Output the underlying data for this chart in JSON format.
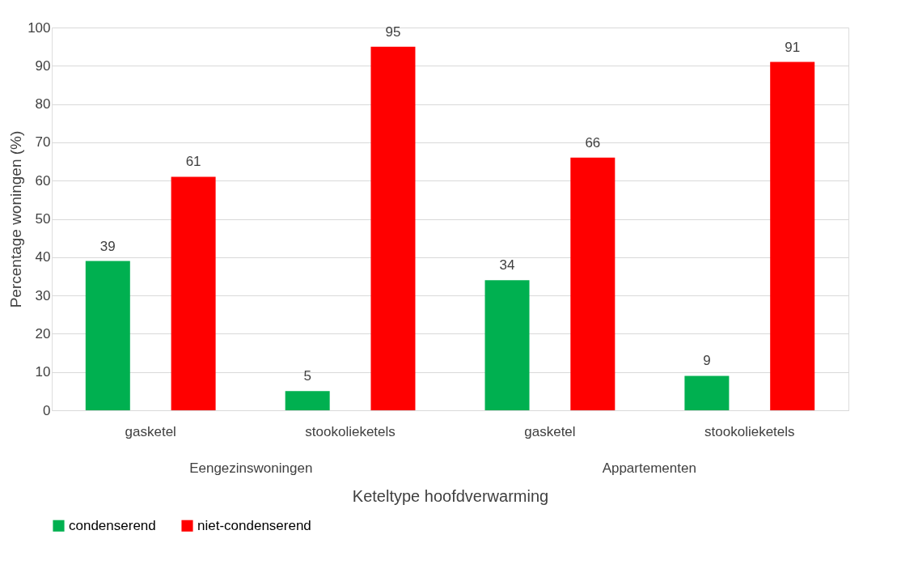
{
  "chart_data": {
    "type": "bar",
    "xlabel": "Keteltype hoofdverwarming",
    "ylabel": "Percentage woningen (%)",
    "categories": [
      "gasketel",
      "stookolieketels",
      "gasketel",
      "stookolieketels"
    ],
    "annotations": [
      "Eengezinswoningen",
      "Appartementen"
    ],
    "series": [
      {
        "name": "condenserend",
        "color": "#00b050",
        "values": [
          39,
          5,
          34,
          9
        ]
      },
      {
        "name": "niet-condenserend",
        "color": "#ff0000",
        "values": [
          61,
          95,
          66,
          91
        ]
      }
    ],
    "ylim": [
      0,
      100
    ],
    "yticks": [
      0,
      10,
      20,
      30,
      40,
      50,
      60,
      70,
      80,
      90,
      100
    ],
    "grid": "y",
    "legend": "bottom",
    "data_labels": true
  }
}
